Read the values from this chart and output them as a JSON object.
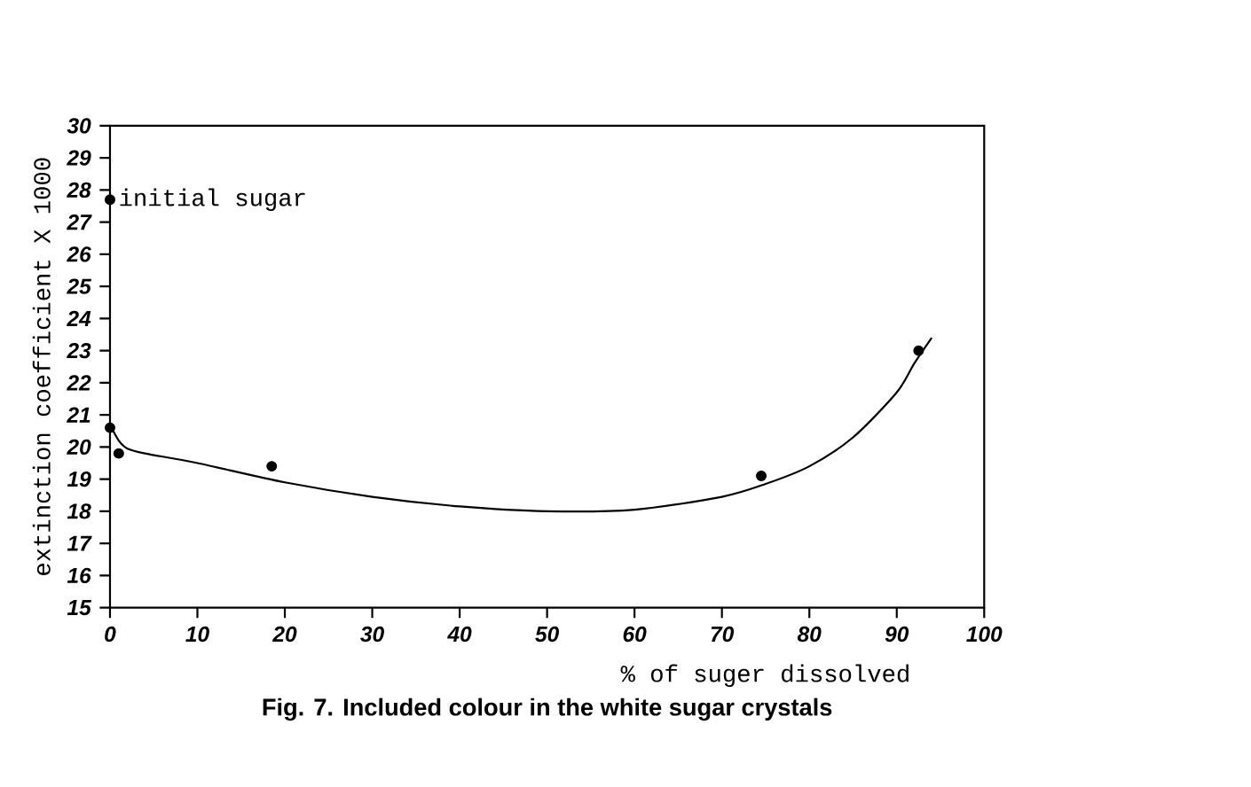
{
  "chart_data": {
    "type": "scatter",
    "title": "Fig. 7. Included colour in the white sugar crystals",
    "xlabel": "% of suger dissolved",
    "ylabel": "extinction coefficient X 1000",
    "xlim": [
      0,
      100
    ],
    "ylim": [
      15,
      30
    ],
    "xticks": [
      0,
      10,
      20,
      30,
      40,
      50,
      60,
      70,
      80,
      90,
      100
    ],
    "yticks": [
      15,
      16,
      17,
      18,
      19,
      20,
      21,
      22,
      23,
      24,
      25,
      26,
      27,
      28,
      29,
      30
    ],
    "annotations": [
      {
        "text": "initial sugar",
        "x": 0,
        "y": 27.7
      }
    ],
    "series": [
      {
        "marker": "circle",
        "color": "#000000",
        "x": [
          0,
          0,
          1,
          18.5,
          74.5,
          92.5
        ],
        "values": [
          27.7,
          20.6,
          19.8,
          19.4,
          19.1,
          23.0
        ]
      },
      {
        "type": "line",
        "marker": "none",
        "color": "#000000",
        "x": [
          0,
          1,
          2,
          4,
          10,
          20,
          30,
          40,
          50,
          60,
          70,
          75,
          80,
          85,
          90,
          92,
          94
        ],
        "values": [
          20.7,
          20.2,
          19.95,
          19.8,
          19.5,
          18.9,
          18.45,
          18.15,
          18.0,
          18.05,
          18.45,
          18.85,
          19.4,
          20.3,
          21.7,
          22.6,
          23.4
        ]
      }
    ]
  }
}
